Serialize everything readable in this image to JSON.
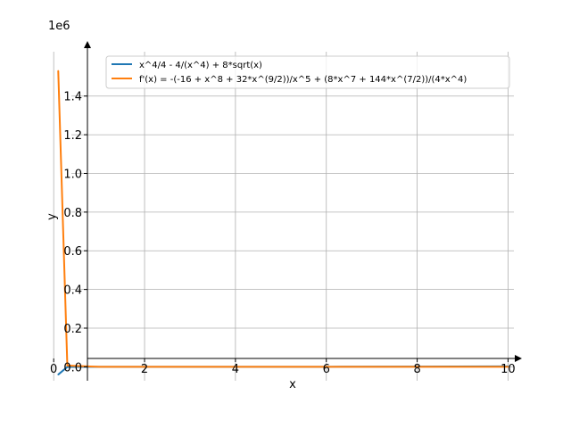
{
  "chart_data": {
    "type": "line",
    "title": "",
    "xlabel": "x",
    "ylabel": "y",
    "y_offset_label": "1e6",
    "xlim": [
      -0.2,
      10.6
    ],
    "ylim": [
      -0.155,
      1.62
    ],
    "grid": true,
    "legend_position": "top-right",
    "x_ticks": [
      0,
      2,
      4,
      6,
      8,
      10
    ],
    "x_tick_labels": [
      "0",
      "2",
      "4",
      "6",
      "8",
      "10"
    ],
    "y_ticks": [
      0.0,
      0.2,
      0.4,
      0.6,
      0.8,
      1.0,
      1.2,
      1.4
    ],
    "y_tick_labels": [
      "0.0",
      "0.2",
      "0.4",
      "0.6",
      "0.8",
      "1.0",
      "1.2",
      "1.4"
    ],
    "series": [
      {
        "name": "x^4/4 - 4/(x^4) + 8*sqrt(x)",
        "color": "#1f77b4",
        "x": [
          0.1,
          0.3,
          1,
          2,
          4,
          6,
          8,
          10
        ],
        "y": [
          -0.04,
          -0.0005,
          0.0,
          0.0,
          0.0001,
          0.0003,
          0.001,
          0.0025
        ]
      },
      {
        "name": "f'(x) = -(-16 + x^8 + 32*x^(9/2))/x^5 + (8*x^7 + 144*x^(7/2))/(4*x^4)",
        "color": "#ff7f0e",
        "x": [
          0.1,
          0.3,
          1,
          2,
          4,
          6,
          8,
          10
        ],
        "y": [
          1.53,
          0.0066,
          0.0,
          0.0,
          0.0,
          0.0001,
          0.0001,
          0.0002
        ]
      }
    ]
  }
}
